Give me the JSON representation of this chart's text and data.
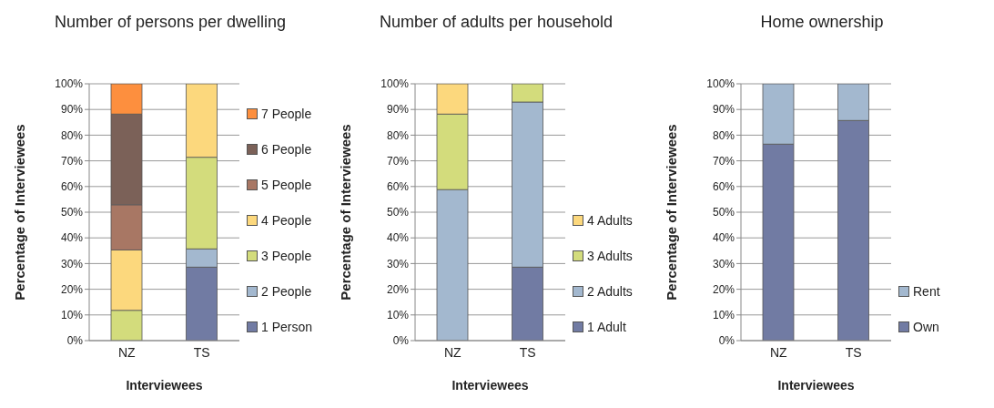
{
  "chart_data": [
    {
      "type": "bar",
      "title": "Number of persons per dwelling",
      "xlabel": "Interviewees",
      "ylabel": "Percentage of Interviewees",
      "categories": [
        "NZ",
        "TS"
      ],
      "stacked": true,
      "grid": "y",
      "legend": "right",
      "ylim": [
        0,
        100
      ],
      "yticks": [
        {
          "value": 0,
          "label": "0%"
        },
        {
          "value": 10,
          "label": "10%"
        },
        {
          "value": 20,
          "label": "20%"
        },
        {
          "value": 30,
          "label": "30%"
        },
        {
          "value": 40,
          "label": "40%"
        },
        {
          "value": 50,
          "label": "50%"
        },
        {
          "value": 60,
          "label": "60%"
        },
        {
          "value": 70,
          "label": "70%"
        },
        {
          "value": 80,
          "label": "80%"
        },
        {
          "value": 90,
          "label": "90%"
        },
        {
          "value": 100,
          "label": "100%"
        }
      ],
      "series": [
        {
          "name": "1 Person",
          "color": "#717ba3",
          "values": [
            0,
            28.6
          ]
        },
        {
          "name": "2 People",
          "color": "#a3b8cf",
          "values": [
            0,
            7.1
          ]
        },
        {
          "name": "3 People",
          "color": "#d3dc7c",
          "values": [
            11.8,
            35.7
          ]
        },
        {
          "name": "4 People",
          "color": "#fcd87d",
          "values": [
            23.5,
            28.6
          ]
        },
        {
          "name": "5 People",
          "color": "#a87764",
          "values": [
            17.6,
            0
          ]
        },
        {
          "name": "6 People",
          "color": "#7b6158",
          "values": [
            35.3,
            0
          ]
        },
        {
          "name": "7 People",
          "color": "#fd8f3e",
          "values": [
            11.8,
            0
          ]
        }
      ]
    },
    {
      "type": "bar",
      "title": "Number of adults per household",
      "xlabel": "Interviewees",
      "ylabel": "Percentage of Interviewees",
      "categories": [
        "NZ",
        "TS"
      ],
      "stacked": true,
      "grid": "y",
      "legend": "right",
      "ylim": [
        0,
        100
      ],
      "yticks": [
        {
          "value": 0,
          "label": "0%"
        },
        {
          "value": 10,
          "label": "10%"
        },
        {
          "value": 20,
          "label": "20%"
        },
        {
          "value": 30,
          "label": "30%"
        },
        {
          "value": 40,
          "label": "40%"
        },
        {
          "value": 50,
          "label": "50%"
        },
        {
          "value": 60,
          "label": "60%"
        },
        {
          "value": 70,
          "label": "70%"
        },
        {
          "value": 80,
          "label": "80%"
        },
        {
          "value": 90,
          "label": "90%"
        },
        {
          "value": 100,
          "label": "100%"
        }
      ],
      "series": [
        {
          "name": "1 Adult",
          "color": "#717ba3",
          "values": [
            0,
            28.6
          ]
        },
        {
          "name": "2 Adults",
          "color": "#a3b8cf",
          "values": [
            58.8,
            64.3
          ]
        },
        {
          "name": "3 Adults",
          "color": "#d3dc7c",
          "values": [
            29.4,
            7.1
          ]
        },
        {
          "name": "4 Adults",
          "color": "#fcd87d",
          "values": [
            11.8,
            0
          ]
        }
      ]
    },
    {
      "type": "bar",
      "title": "Home ownership",
      "xlabel": "Interviewees",
      "ylabel": "Percentage of Interviewees",
      "categories": [
        "NZ",
        "TS"
      ],
      "stacked": true,
      "grid": "y",
      "legend": "right",
      "ylim": [
        0,
        100
      ],
      "yticks": [
        {
          "value": 0,
          "label": "0%"
        },
        {
          "value": 10,
          "label": "10%"
        },
        {
          "value": 20,
          "label": "20%"
        },
        {
          "value": 30,
          "label": "30%"
        },
        {
          "value": 40,
          "label": "40%"
        },
        {
          "value": 50,
          "label": "50%"
        },
        {
          "value": 60,
          "label": "60%"
        },
        {
          "value": 70,
          "label": "70%"
        },
        {
          "value": 80,
          "label": "80%"
        },
        {
          "value": 90,
          "label": "90%"
        },
        {
          "value": 100,
          "label": "100%"
        }
      ],
      "series": [
        {
          "name": "Own",
          "color": "#717ba3",
          "values": [
            76.5,
            85.7
          ]
        },
        {
          "name": "Rent",
          "color": "#a3b8cf",
          "values": [
            23.5,
            14.3
          ]
        }
      ]
    }
  ]
}
